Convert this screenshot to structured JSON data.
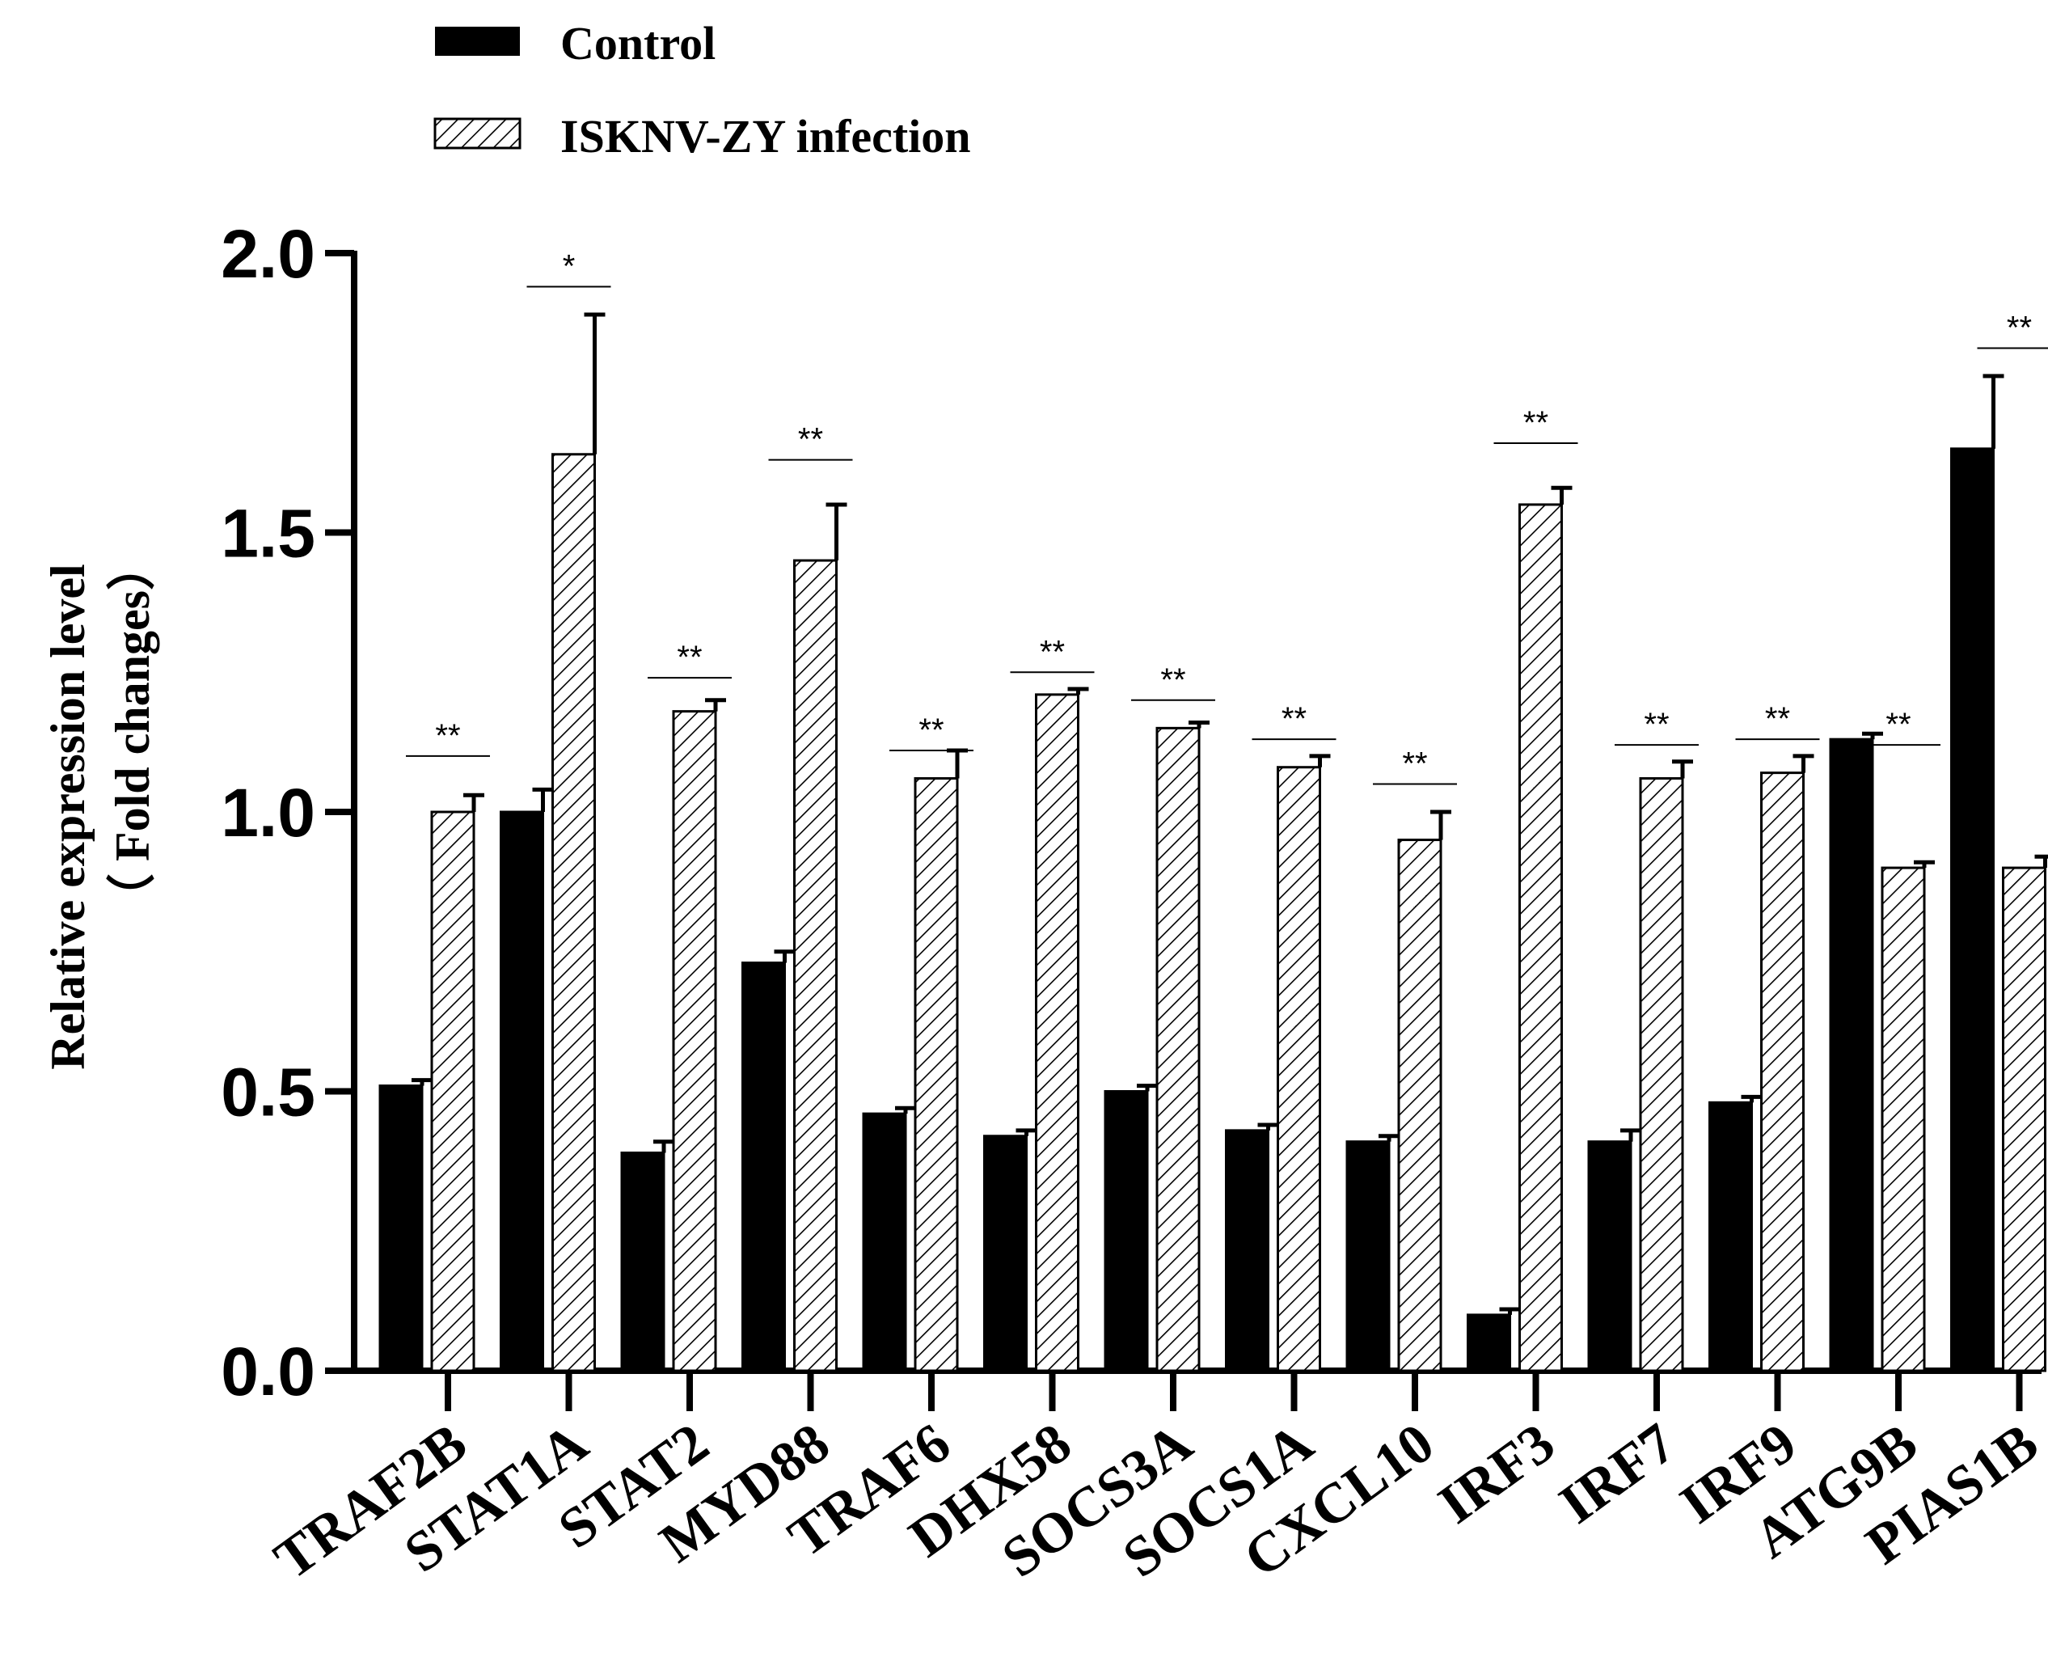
{
  "chart_data": {
    "type": "bar",
    "title": "",
    "xlabel": "",
    "ylabel": "Relative expression level",
    "ylabel_line2": "（ Fold changes）",
    "ylim": [
      0,
      2.0
    ],
    "yticks": [
      "0.0",
      "0.5",
      "1.0",
      "1.5",
      "2.0"
    ],
    "legend_position": "top-left",
    "categories": [
      "TRAF2B",
      "STAT1A",
      "STAT2",
      "MYD88",
      "TRAF6",
      "DHX58",
      "SOCS3A",
      "SOCS1A",
      "CXCL10",
      "IRF3",
      "IRF7",
      "IRF9",
      "ATG9B",
      "PIAS1B"
    ],
    "series": [
      {
        "name": "Control",
        "fill": "#000000",
        "pattern": "solid",
        "values": [
          0.51,
          1.0,
          0.39,
          0.73,
          0.46,
          0.42,
          0.5,
          0.43,
          0.41,
          0.1,
          0.41,
          0.48,
          1.13,
          1.65
        ],
        "errors": [
          0.01,
          0.04,
          0.02,
          0.02,
          0.01,
          0.01,
          0.01,
          0.01,
          0.01,
          0.01,
          0.02,
          0.01,
          0.01,
          0.13
        ]
      },
      {
        "name": "ISKNV-ZY infection",
        "fill": "#ffffff",
        "pattern": "diagonal-hatch",
        "values": [
          1.0,
          1.64,
          1.18,
          1.45,
          1.06,
          1.21,
          1.15,
          1.08,
          0.95,
          1.55,
          1.06,
          1.07,
          0.9,
          0.9
        ],
        "errors": [
          0.03,
          0.25,
          0.02,
          0.1,
          0.05,
          0.01,
          0.01,
          0.02,
          0.05,
          0.03,
          0.03,
          0.03,
          0.01,
          0.02
        ]
      }
    ],
    "significance": [
      "**",
      "*",
      "**",
      "**",
      "**",
      "**",
      "**",
      "**",
      "**",
      "**",
      "**",
      "**",
      "**",
      "**"
    ],
    "significance_y": [
      1.1,
      1.94,
      1.24,
      1.63,
      1.11,
      1.25,
      1.2,
      1.13,
      1.05,
      1.66,
      1.12,
      1.13,
      1.12,
      1.83
    ]
  }
}
